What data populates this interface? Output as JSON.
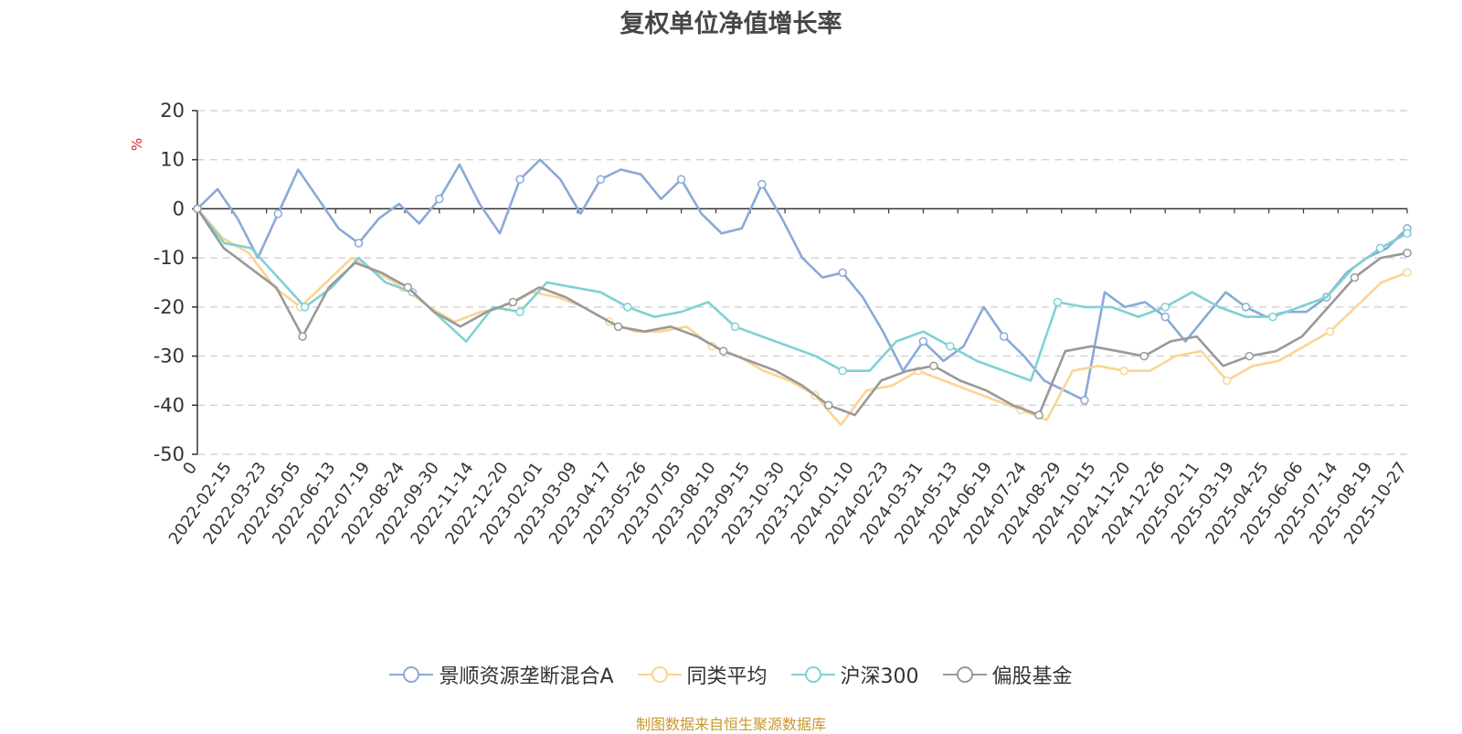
{
  "chart_data": {
    "type": "line",
    "title": "复权单位净值增长率",
    "ylabel": "%",
    "ylim": [
      -50,
      20
    ],
    "yticks": [
      20,
      10,
      0,
      -10,
      -20,
      -30,
      -40,
      -50
    ],
    "grid": true,
    "legend_position": "bottom-center",
    "xticks": [
      "0",
      "2022-02-15",
      "2022-03-23",
      "2022-05-05",
      "2022-06-13",
      "2022-07-19",
      "2022-08-24",
      "2022-09-30",
      "2022-11-14",
      "2022-12-20",
      "2023-02-01",
      "2023-03-09",
      "2023-04-17",
      "2023-05-26",
      "2023-07-05",
      "2023-08-10",
      "2023-09-15",
      "2023-10-30",
      "2023-12-05",
      "2024-01-10",
      "2024-02-23",
      "2024-03-31",
      "2024-05-13",
      "2024-06-19",
      "2024-07-24",
      "2024-08-29",
      "2024-10-15",
      "2024-11-20",
      "2024-12-26",
      "2025-02-11",
      "2025-03-19",
      "2025-04-25",
      "2025-06-06",
      "2025-07-14",
      "2025-08-19",
      "2025-10-27"
    ],
    "series": [
      {
        "name": "景顺资源垄断混合A",
        "color": "#8aa9d8",
        "values": [
          0,
          4,
          -2,
          -10,
          -1,
          8,
          2,
          -4,
          -7,
          -2,
          1,
          -3,
          2,
          9,
          1,
          -5,
          6,
          10,
          6,
          -1,
          6,
          8,
          7,
          2,
          6,
          -1,
          -5,
          -4,
          5,
          -2,
          -10,
          -14,
          -13,
          -18,
          -25,
          -33,
          -27,
          -31,
          -28,
          -20,
          -26,
          -30,
          -35,
          -37,
          -39,
          -17,
          -20,
          -19,
          -22,
          -27,
          -22,
          -17,
          -20,
          -22,
          -21,
          -21,
          -18,
          -13,
          -10,
          -8,
          -4
        ]
      },
      {
        "name": "同类平均",
        "color": "#f9d593",
        "values": [
          0,
          -6,
          -9,
          -16,
          -20,
          -15,
          -10,
          -13,
          -16,
          -20,
          -23,
          -21,
          -20,
          -17,
          -18,
          -20,
          -23,
          -25,
          -25,
          -24,
          -28,
          -30,
          -33,
          -35,
          -38,
          -44,
          -37,
          -36,
          -33,
          -35,
          -37,
          -39,
          -41,
          -43,
          -33,
          -32,
          -33,
          -33,
          -30,
          -29,
          -35,
          -32,
          -31,
          -28,
          -25,
          -20,
          -15,
          -13
        ]
      },
      {
        "name": "沪深300",
        "color": "#7fd1d4",
        "values": [
          0,
          -7,
          -8,
          -14,
          -20,
          -16,
          -10,
          -15,
          -17,
          -22,
          -27,
          -20,
          -21,
          -15,
          -16,
          -17,
          -20,
          -22,
          -21,
          -19,
          -24,
          -26,
          -28,
          -30,
          -33,
          -33,
          -27,
          -25,
          -28,
          -31,
          -33,
          -35,
          -19,
          -20,
          -20,
          -22,
          -20,
          -17,
          -20,
          -22,
          -22,
          -20,
          -18,
          -12,
          -8,
          -5
        ]
      },
      {
        "name": "偏股基金",
        "color": "#999999",
        "values": [
          0,
          -8,
          -12,
          -16,
          -26,
          -16,
          -11,
          -13,
          -16,
          -21,
          -24,
          -21,
          -19,
          -16,
          -18,
          -21,
          -24,
          -25,
          -24,
          -26,
          -29,
          -31,
          -33,
          -36,
          -40,
          -42,
          -35,
          -33,
          -32,
          -35,
          -37,
          -40,
          -42,
          -29,
          -28,
          -29,
          -30,
          -27,
          -26,
          -32,
          -30,
          -29,
          -26,
          -20,
          -14,
          -10,
          -9
        ]
      }
    ]
  },
  "legend": {
    "items": [
      "景顺资源垄断混合A",
      "同类平均",
      "沪深300",
      "偏股基金"
    ]
  },
  "footer": {
    "source": "制图数据来自恒生聚源数据库"
  }
}
